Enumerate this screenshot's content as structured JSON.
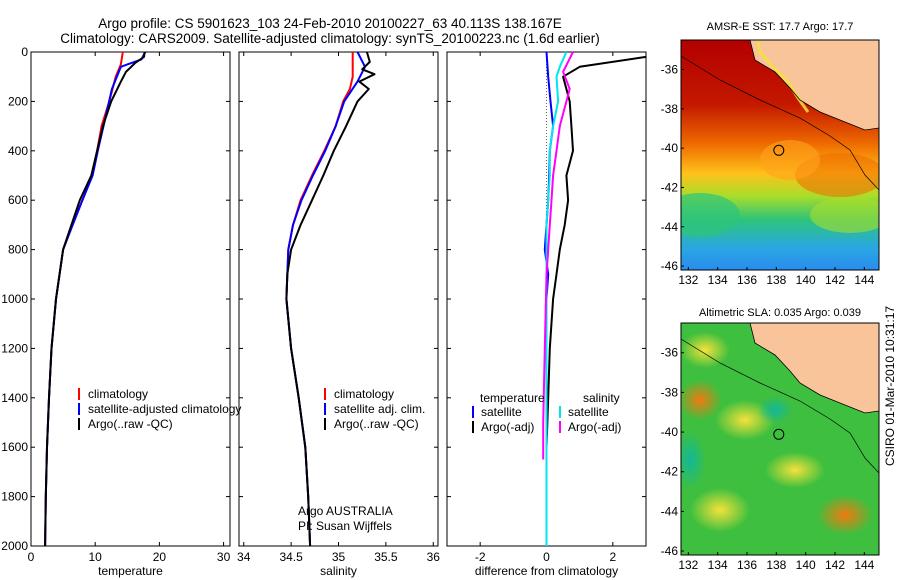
{
  "header": {
    "line1": "Argo profile: CS 5901623_103 24-Feb-2010 20100227_63 40.113S 138.167E",
    "line2": "Climatology: CARS2009. Satellite-adjusted climatology: synTS_20100223.nc (1.6d earlier)"
  },
  "side_text": "CSIRO 01-Mar-2010 10:31:17",
  "colors": {
    "climatology": "#ff0000",
    "satellite": "#0000ff",
    "argo": "#000000",
    "salinity_satellite": "#00e5ee",
    "salinity_argo": "#ff00ff",
    "land": "#f9c49a"
  },
  "chart_data": [
    {
      "type": "line",
      "xlabel": "temperature",
      "ylim": [
        0,
        2000
      ],
      "xlim": [
        0,
        31
      ],
      "xticks": [
        "0",
        "10",
        "20",
        "30"
      ],
      "yticks": [
        "0",
        "200",
        "400",
        "600",
        "800",
        "1000",
        "1200",
        "1400",
        "1600",
        "1800",
        "2000"
      ],
      "legend": [
        "climatology",
        "satellite-adjusted climatology",
        "Argo(..raw -QC)"
      ],
      "series": [
        {
          "name": "climatology",
          "color": "#ff0000",
          "x": [
            14.3,
            14.0,
            13.2,
            12.2,
            11.0,
            10.3,
            9.5,
            8.0,
            6.4,
            5.0,
            3.9,
            3.2,
            2.8,
            2.5,
            2.3,
            2.2
          ],
          "y": [
            0,
            50,
            100,
            200,
            300,
            400,
            500,
            600,
            700,
            800,
            1000,
            1200,
            1400,
            1600,
            1800,
            2000
          ]
        },
        {
          "name": "satellite-adjusted climatology",
          "color": "#0000ff",
          "x": [
            17.8,
            17.2,
            14.0,
            12.6,
            11.3,
            10.4,
            9.6,
            8.0,
            6.5,
            5.0,
            3.9,
            3.2,
            2.8,
            2.5,
            2.3,
            2.2
          ],
          "y": [
            0,
            30,
            60,
            150,
            300,
            400,
            500,
            600,
            700,
            800,
            1000,
            1200,
            1400,
            1600,
            1800,
            2000
          ]
        },
        {
          "name": "Argo(..raw -QC)",
          "color": "#000000",
          "x": [
            17.7,
            17.6,
            16.2,
            14.8,
            14.0,
            12.5,
            11.2,
            10.3,
            9.4,
            7.6,
            6.3,
            5.0,
            3.9,
            3.2,
            2.8,
            2.5,
            2.3,
            2.2
          ],
          "y": [
            0,
            20,
            45,
            80,
            120,
            200,
            300,
            400,
            500,
            600,
            700,
            800,
            1000,
            1200,
            1400,
            1600,
            1800,
            2000
          ]
        }
      ]
    },
    {
      "type": "line",
      "xlabel": "salinity",
      "ylim": [
        0,
        2000
      ],
      "xlim": [
        33.95,
        36.05
      ],
      "xticks": [
        "34",
        "34.5",
        "35",
        "35.5",
        "36"
      ],
      "legend": [
        "climatology",
        "satellite adj. clim.",
        "Argo(..raw -QC)"
      ],
      "annotation": [
        "Argo AUSTRALIA",
        "PI: Susan Wijffels"
      ],
      "series": [
        {
          "name": "climatology",
          "color": "#ff0000",
          "x": [
            35.15,
            35.15,
            35.12,
            35.05,
            34.97,
            34.85,
            34.72,
            34.6,
            34.52,
            34.47,
            34.45,
            34.5,
            34.58,
            34.65,
            34.68,
            34.7
          ],
          "y": [
            0,
            100,
            150,
            200,
            300,
            400,
            500,
            600,
            700,
            800,
            1000,
            1200,
            1400,
            1600,
            1800,
            2000
          ]
        },
        {
          "name": "satellite adj. clim.",
          "color": "#0000ff",
          "x": [
            35.2,
            35.28,
            35.2,
            35.06,
            34.97,
            34.86,
            34.73,
            34.61,
            34.52,
            34.47,
            34.45,
            34.5,
            34.58,
            34.65,
            34.68,
            34.7
          ],
          "y": [
            0,
            60,
            120,
            200,
            300,
            400,
            500,
            600,
            700,
            800,
            1000,
            1200,
            1400,
            1600,
            1800,
            2000
          ]
        },
        {
          "name": "Argo(..raw -QC)",
          "color": "#000000",
          "x": [
            35.3,
            35.33,
            35.25,
            35.38,
            35.22,
            35.32,
            35.2,
            35.08,
            34.95,
            34.84,
            34.72,
            34.6,
            34.5,
            34.46,
            34.45,
            34.5,
            34.58,
            34.65,
            34.68,
            34.7
          ],
          "y": [
            0,
            40,
            70,
            90,
            120,
            150,
            200,
            300,
            400,
            500,
            600,
            700,
            800,
            900,
            1000,
            1200,
            1400,
            1600,
            1800,
            2000
          ]
        }
      ]
    },
    {
      "type": "line",
      "xlabel": "difference from climatology",
      "ylim": [
        0,
        2000
      ],
      "xlim": [
        -3,
        3
      ],
      "xticks": [
        "-2",
        "0",
        "2"
      ],
      "legend_titles": [
        "temperature",
        "salinity"
      ],
      "legend": [
        "satellite",
        "Argo(-adj)",
        "satellite",
        "Argo(-adj)"
      ],
      "series": [
        {
          "name": "temperature satellite",
          "color": "#0000ff",
          "x": [
            0.0,
            0.05,
            0.12,
            0.2,
            0.1,
            0.08,
            0.05,
            0.0,
            -0.05,
            0.05,
            0.0,
            0.0,
            0.0,
            0.0,
            0.0
          ],
          "y": [
            0,
            100,
            200,
            300,
            400,
            500,
            600,
            700,
            800,
            900,
            1000,
            1200,
            1400,
            1600,
            2000
          ]
        },
        {
          "name": "temperature Argo(-adj)",
          "color": "#000000",
          "x": [
            3.0,
            1.0,
            0.5,
            0.6,
            0.7,
            0.75,
            0.8,
            0.6,
            0.65,
            0.55,
            0.4,
            0.3,
            0.2,
            0.1,
            0.05,
            0.0
          ],
          "y": [
            20,
            60,
            100,
            150,
            200,
            300,
            400,
            500,
            600,
            700,
            800,
            900,
            1000,
            1200,
            1400,
            1600
          ]
        },
        {
          "name": "salinity satellite",
          "color": "#00e5ee",
          "x": [
            0.6,
            0.4,
            0.3,
            0.35,
            0.2,
            0.1,
            0.1,
            0.0,
            0.0,
            0.0,
            0.0,
            0.0,
            0.0
          ],
          "y": [
            0,
            60,
            100,
            200,
            300,
            400,
            500,
            700,
            900,
            1100,
            1400,
            1700,
            2000
          ]
        },
        {
          "name": "salinity Argo(-adj)",
          "color": "#ff00ff",
          "x": [
            0.8,
            0.5,
            0.7,
            0.6,
            0.4,
            0.3,
            0.2,
            0.15,
            0.1,
            0.05,
            0.0,
            -0.05,
            -0.1,
            -0.1
          ],
          "y": [
            0,
            80,
            150,
            200,
            300,
            400,
            500,
            600,
            700,
            800,
            900,
            1200,
            1500,
            1650
          ]
        }
      ]
    },
    {
      "type": "heatmap",
      "title": "AMSR-E SST: 17.7 Argo: 17.7",
      "xticks": [
        "132",
        "134",
        "136",
        "138",
        "140",
        "142",
        "144"
      ],
      "yticks": [
        "-36",
        "-38",
        "-40",
        "-42",
        "-44",
        "-46"
      ],
      "xlim": [
        131.5,
        145
      ],
      "ylim": [
        -46.2,
        -34.5
      ],
      "argo_position": [
        138.167,
        -40.113
      ]
    },
    {
      "type": "heatmap",
      "title": "Altimetric SLA: 0.035 Argo: 0.039",
      "xticks": [
        "132",
        "134",
        "136",
        "138",
        "140",
        "142",
        "144"
      ],
      "yticks": [
        "-36",
        "-38",
        "-40",
        "-42",
        "-44",
        "-46"
      ],
      "xlim": [
        131.5,
        145
      ],
      "ylim": [
        -46.2,
        -34.5
      ],
      "argo_position": [
        138.167,
        -40.113
      ]
    }
  ]
}
